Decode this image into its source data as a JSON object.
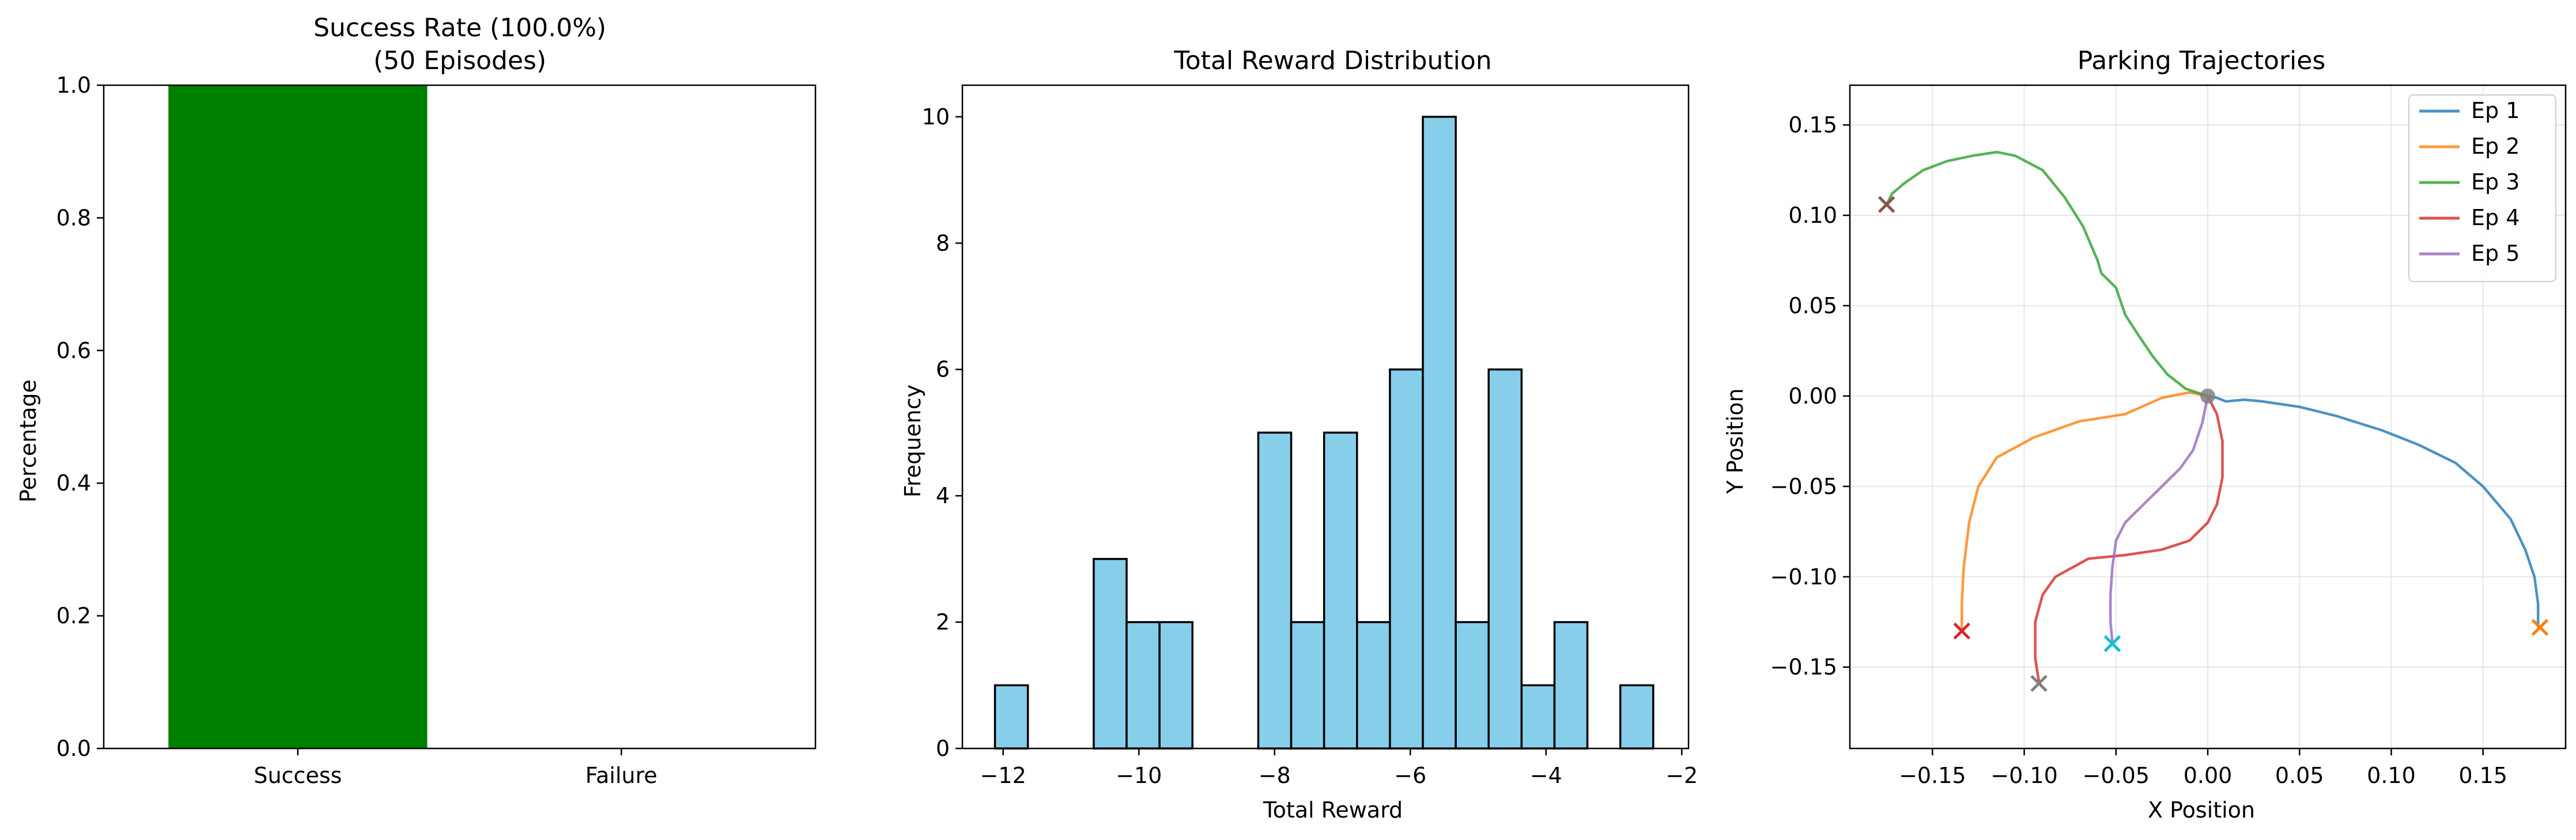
{
  "chart_data": [
    {
      "type": "bar",
      "title_lines": [
        "Success Rate (100.0%)",
        "(50 Episodes)"
      ],
      "xlabel": "",
      "ylabel": "Percentage",
      "categories": [
        "Success",
        "Failure"
      ],
      "values": [
        1.0,
        0.0
      ],
      "ylim": [
        0,
        1.0
      ],
      "yticks": [
        0.0,
        0.2,
        0.4,
        0.6,
        0.8,
        1.0
      ],
      "ytick_labels": [
        "0.0",
        "0.2",
        "0.4",
        "0.6",
        "0.8",
        "1.0"
      ],
      "bar_color": "#008000",
      "grid": false
    },
    {
      "type": "bar",
      "subtype": "histogram",
      "title": "Total Reward Distribution",
      "xlabel": "Total Reward",
      "ylabel": "Frequency",
      "bin_edges": [
        -12.12,
        -11.635,
        -11.15,
        -10.665,
        -10.18,
        -9.695,
        -9.21,
        -8.725,
        -8.24,
        -7.755,
        -7.27,
        -6.785,
        -6.3,
        -5.815,
        -5.33,
        -4.845,
        -4.36,
        -3.875,
        -3.39,
        -2.905,
        -2.42
      ],
      "counts": [
        1,
        0,
        0,
        3,
        2,
        2,
        0,
        0,
        5,
        2,
        5,
        2,
        6,
        10,
        2,
        6,
        1,
        2,
        0,
        1
      ],
      "xlim": [
        -12.6,
        -1.9
      ],
      "ylim": [
        0,
        10.5
      ],
      "xticks": [
        -12,
        -10,
        -8,
        -6,
        -4,
        -2
      ],
      "xtick_labels": [
        "−12",
        "−10",
        "−8",
        "−6",
        "−4",
        "−2"
      ],
      "yticks": [
        0,
        2,
        4,
        6,
        8,
        10
      ],
      "ytick_labels": [
        "0",
        "2",
        "4",
        "6",
        "8",
        "10"
      ],
      "bar_color": "#87ceeb",
      "edge_color": "#000000",
      "grid": false
    },
    {
      "type": "line",
      "title": "Parking Trajectories",
      "xlabel": "X Position",
      "ylabel": "Y Position",
      "xlim": [
        -0.195,
        0.195
      ],
      "ylim": [
        -0.195,
        0.172
      ],
      "xticks": [
        -0.15,
        -0.1,
        -0.05,
        0.0,
        0.05,
        0.1,
        0.15
      ],
      "xtick_labels": [
        "−0.15",
        "−0.10",
        "−0.05",
        "0.00",
        "0.05",
        "0.10",
        "0.15"
      ],
      "yticks": [
        -0.15,
        -0.1,
        -0.05,
        0.0,
        0.05,
        0.1,
        0.15
      ],
      "ytick_labels": [
        "−0.15",
        "−0.10",
        "−0.05",
        "0.00",
        "0.05",
        "0.10",
        "0.15"
      ],
      "grid": true,
      "legend_position": "top-right",
      "series": [
        {
          "name": "Ep 1",
          "color": "#1f77b4",
          "x": [
            0.0,
            0.005,
            0.01,
            0.02,
            0.03,
            0.05,
            0.07,
            0.095,
            0.115,
            0.135,
            0.15,
            0.165,
            0.173,
            0.178,
            0.18,
            0.18
          ],
          "y": [
            0.0,
            -0.001,
            -0.003,
            -0.002,
            -0.003,
            -0.006,
            -0.011,
            -0.019,
            -0.027,
            -0.037,
            -0.05,
            -0.068,
            -0.085,
            -0.1,
            -0.115,
            -0.128
          ],
          "end": [
            0.181,
            -0.128
          ],
          "end_color": "#ff7f0e"
        },
        {
          "name": "Ep 2",
          "color": "#ff7f0e",
          "x": [
            0.0,
            -0.01,
            -0.025,
            -0.045,
            -0.07,
            -0.095,
            -0.115,
            -0.125,
            -0.13,
            -0.133,
            -0.134,
            -0.134
          ],
          "y": [
            0.0,
            0.002,
            -0.001,
            -0.01,
            -0.014,
            -0.023,
            -0.034,
            -0.05,
            -0.07,
            -0.095,
            -0.115,
            -0.13
          ],
          "end": [
            -0.134,
            -0.13
          ],
          "end_color": "#d62728"
        },
        {
          "name": "Ep 3",
          "color": "#2ca02c",
          "x": [
            0.0,
            -0.012,
            -0.022,
            -0.03,
            -0.038,
            -0.045,
            -0.05,
            -0.058,
            -0.06,
            -0.068,
            -0.078,
            -0.09,
            -0.105,
            -0.115,
            -0.128,
            -0.142,
            -0.155,
            -0.165,
            -0.172,
            -0.175
          ],
          "y": [
            0.0,
            0.004,
            0.012,
            0.022,
            0.034,
            0.045,
            0.06,
            0.068,
            0.075,
            0.094,
            0.11,
            0.125,
            0.133,
            0.135,
            0.133,
            0.13,
            0.125,
            0.118,
            0.112,
            0.106
          ],
          "end": [
            -0.175,
            0.106
          ],
          "end_color": "#8c564b"
        },
        {
          "name": "Ep 4",
          "color": "#d62728",
          "x": [
            0.0,
            0.005,
            0.008,
            0.008,
            0.005,
            0.0,
            -0.01,
            -0.025,
            -0.045,
            -0.065,
            -0.083,
            -0.09,
            -0.094,
            -0.094,
            -0.092
          ],
          "y": [
            0.0,
            -0.01,
            -0.025,
            -0.045,
            -0.06,
            -0.07,
            -0.08,
            -0.085,
            -0.088,
            -0.09,
            -0.1,
            -0.11,
            -0.125,
            -0.145,
            -0.158
          ],
          "end": [
            -0.092,
            -0.159
          ],
          "end_color": "#7f7f7f"
        },
        {
          "name": "Ep 5",
          "color": "#9467bd",
          "x": [
            0.0,
            -0.003,
            -0.008,
            -0.015,
            -0.025,
            -0.035,
            -0.045,
            -0.05,
            -0.052,
            -0.053,
            -0.053,
            -0.052
          ],
          "y": [
            0.0,
            -0.015,
            -0.03,
            -0.04,
            -0.05,
            -0.06,
            -0.07,
            -0.08,
            -0.095,
            -0.11,
            -0.125,
            -0.136
          ],
          "end": [
            -0.052,
            -0.137
          ],
          "end_color": "#17becf"
        }
      ],
      "start_point": [
        0.0,
        0.0
      ],
      "start_color": "#7f7f7f"
    }
  ]
}
